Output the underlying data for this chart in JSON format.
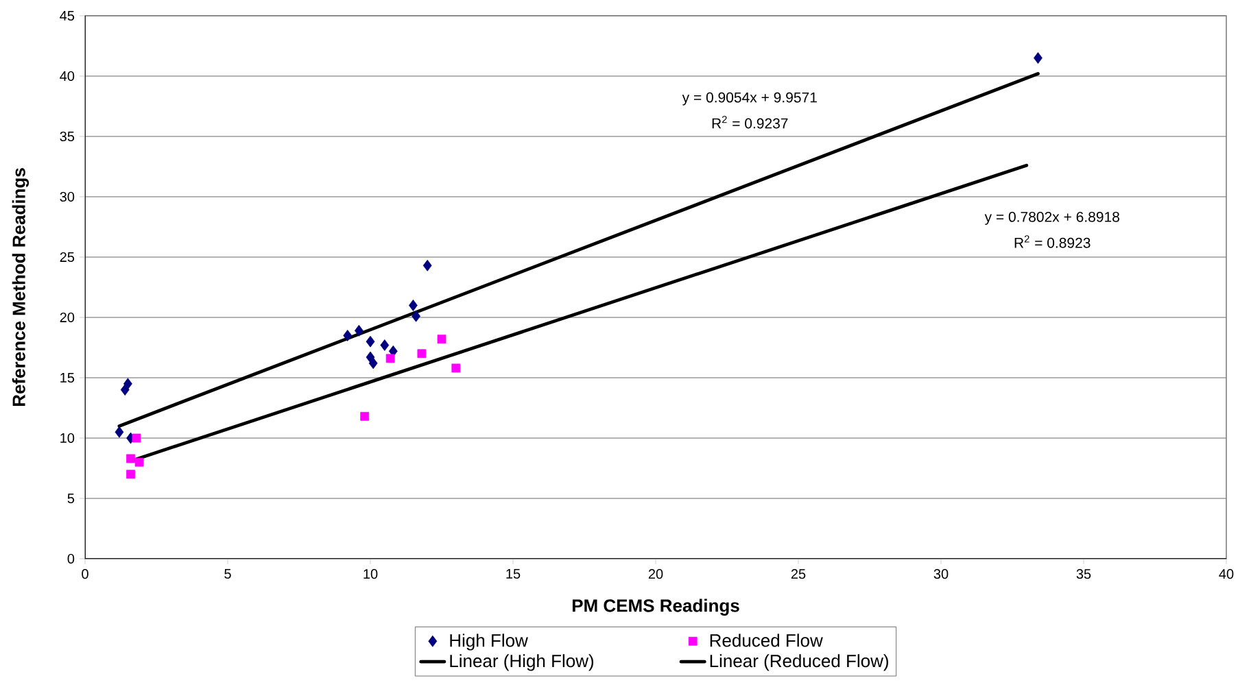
{
  "chart_data": {
    "type": "scatter",
    "xlabel": "PM CEMS Readings",
    "ylabel": "Reference Method Readings",
    "xlim": [
      0,
      40
    ],
    "xticks": [
      0,
      5,
      10,
      15,
      20,
      25,
      30,
      35,
      40
    ],
    "ylim": [
      0,
      45
    ],
    "yticks": [
      0,
      5,
      10,
      15,
      20,
      25,
      30,
      35,
      40,
      45
    ],
    "grid": "y",
    "legend": "bottom",
    "series": [
      {
        "name": "High Flow",
        "color": "#000080",
        "marker": "diamond",
        "x": [
          1.2,
          1.4,
          1.5,
          1.6,
          9.2,
          9.6,
          10.0,
          10.0,
          10.1,
          10.5,
          10.8,
          11.5,
          11.6,
          12.0,
          33.4
        ],
        "values": [
          10.5,
          14.0,
          14.5,
          10.0,
          18.5,
          18.9,
          18.0,
          16.7,
          16.2,
          17.7,
          17.2,
          21.0,
          20.1,
          24.3,
          41.5
        ]
      },
      {
        "name": "Reduced Flow",
        "color": "#ff00ff",
        "marker": "square",
        "x": [
          1.8,
          1.6,
          1.9,
          1.6,
          9.8,
          10.7,
          11.8,
          12.5,
          13.0
        ],
        "values": [
          10.0,
          8.3,
          8.0,
          7.0,
          11.8,
          16.6,
          17.0,
          18.2,
          15.8
        ]
      },
      {
        "name": "Linear (High Flow)",
        "type": "line",
        "color": "#000000",
        "marker": "none",
        "x": [
          1.2,
          33.4
        ],
        "values": [
          11.0,
          40.2
        ]
      },
      {
        "name": "Linear (Reduced Flow)",
        "type": "line",
        "color": "#000000",
        "marker": "none",
        "x": [
          1.6,
          33.0
        ],
        "values": [
          8.1,
          32.6
        ]
      }
    ],
    "annotations": [
      "y = 0.9054x + 9.9571",
      "R$^{2}$ = 0.9237",
      "y = 0.7802x + 6.8918",
      "R$^{2}$ = 0.8923"
    ]
  }
}
